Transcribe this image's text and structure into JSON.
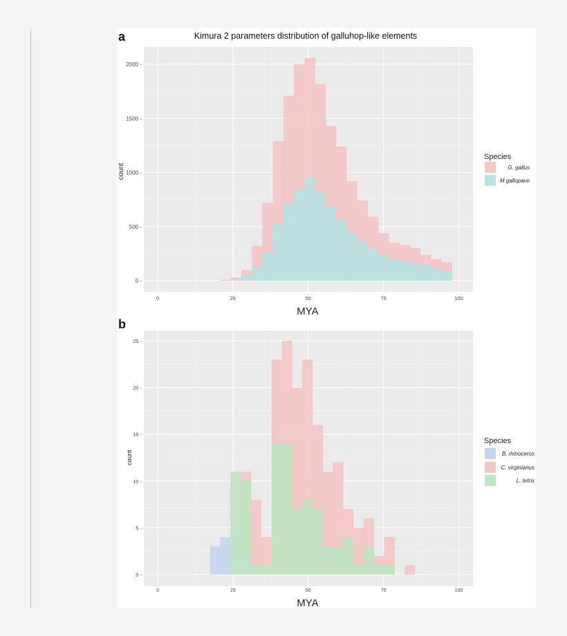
{
  "chart_data": [
    {
      "panel": "a",
      "type": "bar",
      "title": "Kimura 2 parameters distribution of galluhop-like elements",
      "xlabel": "MYA",
      "ylabel": "count",
      "xlim": [
        0,
        100
      ],
      "ylim": [
        0,
        2000
      ],
      "xticks": [
        "0",
        "25",
        "50",
        "75",
        "100"
      ],
      "yticks": [
        "0",
        "500",
        "1000",
        "1500",
        "2000"
      ],
      "grid": true,
      "legend": {
        "title": "Species",
        "placement": "right"
      },
      "bin_width": 3.5,
      "series": [
        {
          "name": "G. gallus",
          "color": "#f4c6c6",
          "bins": [
            [
              22.5,
              10
            ],
            [
              26,
              30
            ],
            [
              29.5,
              100
            ],
            [
              33,
              320
            ],
            [
              36.5,
              720
            ],
            [
              40,
              1290
            ],
            [
              43.5,
              1710
            ],
            [
              47,
              2000
            ],
            [
              50.5,
              2060
            ],
            [
              54,
              1820
            ],
            [
              57.5,
              1430
            ],
            [
              61,
              1240
            ],
            [
              64.5,
              920
            ],
            [
              68,
              740
            ],
            [
              71.5,
              590
            ],
            [
              75,
              440
            ],
            [
              78.5,
              350
            ],
            [
              82,
              330
            ],
            [
              85.5,
              300
            ],
            [
              89,
              240
            ],
            [
              92.5,
              200
            ],
            [
              96,
              170
            ]
          ]
        },
        {
          "name": "M gallopavo",
          "color": "#b7e3e3",
          "bins": [
            [
              22.5,
              5
            ],
            [
              26,
              15
            ],
            [
              29.5,
              50
            ],
            [
              33,
              120
            ],
            [
              36.5,
              260
            ],
            [
              40,
              520
            ],
            [
              43.5,
              710
            ],
            [
              47,
              840
            ],
            [
              50.5,
              950
            ],
            [
              54,
              810
            ],
            [
              57.5,
              680
            ],
            [
              61,
              560
            ],
            [
              64.5,
              440
            ],
            [
              68,
              360
            ],
            [
              71.5,
              290
            ],
            [
              75,
              230
            ],
            [
              78.5,
              200
            ],
            [
              82,
              180
            ],
            [
              85.5,
              160
            ],
            [
              89,
              140
            ],
            [
              92.5,
              110
            ],
            [
              96,
              80
            ]
          ]
        }
      ]
    },
    {
      "panel": "b",
      "type": "bar",
      "title": "",
      "xlabel": "MYA",
      "ylabel": "count",
      "xlim": [
        0,
        100
      ],
      "ylim": [
        0,
        25
      ],
      "xticks": [
        "0",
        "25",
        "50",
        "75",
        "100"
      ],
      "yticks": [
        "0",
        "5",
        "10",
        "15",
        "20",
        "25"
      ],
      "grid": true,
      "legend": {
        "title": "Species",
        "placement": "right"
      },
      "bin_width": 3.4,
      "series": [
        {
          "name": "B. rhinoceros",
          "color": "#c6d6ee",
          "bins": [
            [
              19.1,
              3
            ],
            [
              22.5,
              4
            ],
            [
              25.9,
              5
            ],
            [
              29.3,
              2
            ]
          ]
        },
        {
          "name": "C. virginianus",
          "color": "#f4c6c6",
          "bins": [
            [
              25.9,
              11
            ],
            [
              29.3,
              11
            ],
            [
              32.7,
              8
            ],
            [
              36.1,
              4
            ],
            [
              39.5,
              23
            ],
            [
              42.9,
              25
            ],
            [
              46.3,
              20
            ],
            [
              49.7,
              23
            ],
            [
              53.1,
              16
            ],
            [
              56.5,
              11
            ],
            [
              59.9,
              12
            ],
            [
              63.3,
              7
            ],
            [
              66.7,
              5
            ],
            [
              70.1,
              6
            ],
            [
              73.5,
              2
            ],
            [
              76.9,
              4
            ],
            [
              83.7,
              1
            ]
          ]
        },
        {
          "name": "L. tetrix",
          "color": "#bfe5c4",
          "bins": [
            [
              25.9,
              11
            ],
            [
              29.3,
              10
            ],
            [
              32.7,
              1
            ],
            [
              36.1,
              1
            ],
            [
              39.5,
              14
            ],
            [
              42.9,
              14
            ],
            [
              46.3,
              7
            ],
            [
              49.7,
              8
            ],
            [
              53.1,
              7
            ],
            [
              56.5,
              3
            ],
            [
              59.9,
              3
            ],
            [
              63.3,
              4
            ],
            [
              66.7,
              1
            ],
            [
              70.1,
              3
            ],
            [
              73.5,
              1
            ],
            [
              76.9,
              1
            ]
          ]
        }
      ]
    }
  ]
}
